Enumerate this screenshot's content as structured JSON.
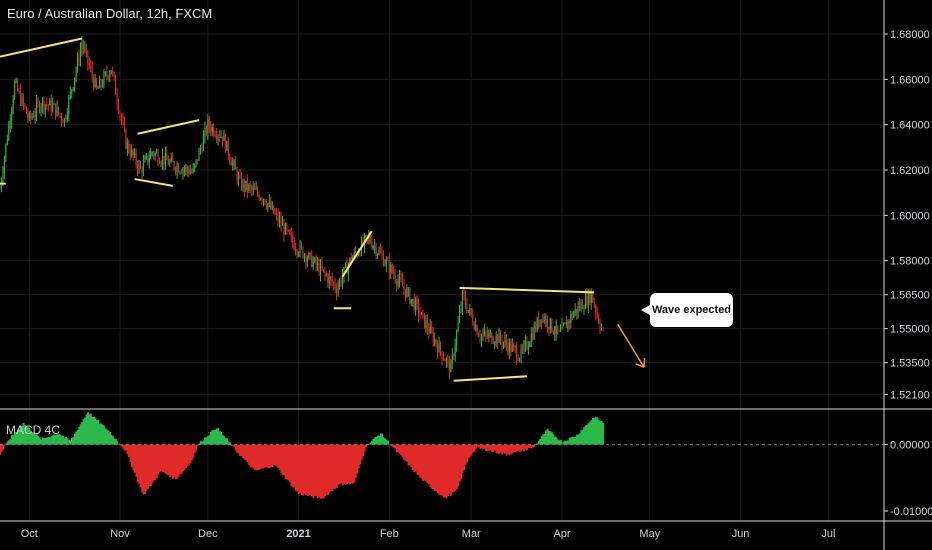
{
  "title": "Euro / Australian Dollar, 12h, FXCM",
  "macd_label": "MACD 4C",
  "annotation": "Wave expected",
  "colors": {
    "background": "#000000",
    "up": "#2db84a",
    "down": "#e02a2a",
    "trendline": "#f5e37a",
    "arrow": "#f39a3c",
    "divider": "#d8d8d8",
    "grid": "#1b1b1b"
  },
  "chart_data": [
    {
      "type": "candlestick",
      "title": "Euro / Australian Dollar, 12h, FXCM",
      "ylim": [
        1.515,
        1.695
      ],
      "yticks": [
        "1.68000",
        "1.66000",
        "1.64000",
        "1.62000",
        "1.60000",
        "1.58000",
        "1.56500",
        "1.55000",
        "1.53500",
        "1.52100"
      ],
      "xticks": [
        "Oct",
        "Nov",
        "Dec",
        "2021",
        "Feb",
        "Mar",
        "Apr",
        "May",
        "Jun",
        "Jul"
      ],
      "x_range": [
        "2020-09-21",
        "2021-07-20"
      ],
      "series": {
        "price_path": [
          {
            "date": "2020-09-21",
            "value": 1.612
          },
          {
            "date": "2020-09-26",
            "value": 1.658
          },
          {
            "date": "2020-10-01",
            "value": 1.642
          },
          {
            "date": "2020-10-05",
            "value": 1.65
          },
          {
            "date": "2020-10-09",
            "value": 1.648
          },
          {
            "date": "2020-10-13",
            "value": 1.642
          },
          {
            "date": "2020-10-19",
            "value": 1.676
          },
          {
            "date": "2020-10-24",
            "value": 1.655
          },
          {
            "date": "2020-10-29",
            "value": 1.665
          },
          {
            "date": "2020-11-03",
            "value": 1.632
          },
          {
            "date": "2020-11-08",
            "value": 1.62
          },
          {
            "date": "2020-11-12",
            "value": 1.628
          },
          {
            "date": "2020-11-18",
            "value": 1.623
          },
          {
            "date": "2020-11-26",
            "value": 1.619
          },
          {
            "date": "2020-12-01",
            "value": 1.64
          },
          {
            "date": "2020-12-06",
            "value": 1.635
          },
          {
            "date": "2020-12-12",
            "value": 1.614
          },
          {
            "date": "2020-12-20",
            "value": 1.608
          },
          {
            "date": "2020-12-30",
            "value": 1.588
          },
          {
            "date": "2021-01-07",
            "value": 1.578
          },
          {
            "date": "2021-01-14",
            "value": 1.568
          },
          {
            "date": "2021-01-19",
            "value": 1.581
          },
          {
            "date": "2021-01-25",
            "value": 1.59
          },
          {
            "date": "2021-02-01",
            "value": 1.577
          },
          {
            "date": "2021-02-10",
            "value": 1.56
          },
          {
            "date": "2021-02-22",
            "value": 1.532
          },
          {
            "date": "2021-02-26",
            "value": 1.564
          },
          {
            "date": "2021-03-04",
            "value": 1.547
          },
          {
            "date": "2021-03-10",
            "value": 1.546
          },
          {
            "date": "2021-03-18",
            "value": 1.538
          },
          {
            "date": "2021-03-25",
            "value": 1.556
          },
          {
            "date": "2021-03-31",
            "value": 1.547
          },
          {
            "date": "2021-04-05",
            "value": 1.557
          },
          {
            "date": "2021-04-11",
            "value": 1.565
          },
          {
            "date": "2021-04-15",
            "value": 1.548
          }
        ]
      },
      "trendlines": [
        {
          "from": {
            "date": "2020-09-21",
            "value": 1.67
          },
          "to": {
            "date": "2020-10-19",
            "value": 1.678
          }
        },
        {
          "from": {
            "date": "2020-09-21",
            "value": 1.614
          },
          "to": {
            "date": "2020-09-23",
            "value": 1.614
          }
        },
        {
          "from": {
            "date": "2020-11-07",
            "value": 1.636
          },
          "to": {
            "date": "2020-11-28",
            "value": 1.642
          }
        },
        {
          "from": {
            "date": "2020-11-06",
            "value": 1.616
          },
          "to": {
            "date": "2020-11-19",
            "value": 1.613
          }
        },
        {
          "from": {
            "date": "2021-01-16",
            "value": 1.573
          },
          "to": {
            "date": "2021-01-26",
            "value": 1.593
          }
        },
        {
          "from": {
            "date": "2021-01-13",
            "value": 1.559
          },
          "to": {
            "date": "2021-01-19",
            "value": 1.559
          }
        },
        {
          "from": {
            "date": "2021-02-25",
            "value": 1.568
          },
          "to": {
            "date": "2021-04-12",
            "value": 1.566
          }
        },
        {
          "from": {
            "date": "2021-02-23",
            "value": 1.527
          },
          "to": {
            "date": "2021-03-20",
            "value": 1.529
          }
        }
      ],
      "projection_arrow": {
        "from": {
          "date": "2021-04-20",
          "value": 1.552
        },
        "to": {
          "date": "2021-04-29",
          "value": 1.533
        }
      }
    },
    {
      "type": "histogram",
      "title": "MACD 4C",
      "ylim": [
        -0.0115,
        0.0052
      ],
      "yticks": [
        "0.00000",
        "-0.01000"
      ],
      "series": {
        "macd_path": [
          {
            "date": "2020-09-21",
            "value": -0.0015
          },
          {
            "date": "2020-09-24",
            "value": 0.0007
          },
          {
            "date": "2020-09-29",
            "value": 0.0032
          },
          {
            "date": "2020-10-05",
            "value": 0.0008
          },
          {
            "date": "2020-10-11",
            "value": 0.0017
          },
          {
            "date": "2020-10-15",
            "value": 0.0005
          },
          {
            "date": "2020-10-21",
            "value": 0.0049
          },
          {
            "date": "2020-10-28",
            "value": 0.0021
          },
          {
            "date": "2020-11-03",
            "value": -0.001
          },
          {
            "date": "2020-11-09",
            "value": -0.0076
          },
          {
            "date": "2020-11-15",
            "value": -0.004
          },
          {
            "date": "2020-11-20",
            "value": -0.0052
          },
          {
            "date": "2020-11-25",
            "value": -0.0028
          },
          {
            "date": "2020-11-28",
            "value": 0.0002
          },
          {
            "date": "2020-12-04",
            "value": 0.0026
          },
          {
            "date": "2020-12-10",
            "value": -0.0006
          },
          {
            "date": "2020-12-17",
            "value": -0.004
          },
          {
            "date": "2020-12-24",
            "value": -0.0031
          },
          {
            "date": "2021-01-01",
            "value": -0.0074
          },
          {
            "date": "2021-01-09",
            "value": -0.0081
          },
          {
            "date": "2021-01-15",
            "value": -0.006
          },
          {
            "date": "2021-01-20",
            "value": -0.0058
          },
          {
            "date": "2021-01-24",
            "value": -0.0002
          },
          {
            "date": "2021-01-29",
            "value": 0.0017
          },
          {
            "date": "2021-02-03",
            "value": -0.0008
          },
          {
            "date": "2021-02-12",
            "value": -0.0052
          },
          {
            "date": "2021-02-20",
            "value": -0.0081
          },
          {
            "date": "2021-02-24",
            "value": -0.0069
          },
          {
            "date": "2021-02-28",
            "value": -0.002
          },
          {
            "date": "2021-03-03",
            "value": -0.0005
          },
          {
            "date": "2021-03-13",
            "value": -0.0015
          },
          {
            "date": "2021-03-22",
            "value": -0.0005
          },
          {
            "date": "2021-03-27",
            "value": 0.0022
          },
          {
            "date": "2021-04-01",
            "value": 0.0004
          },
          {
            "date": "2021-04-06",
            "value": 0.0014
          },
          {
            "date": "2021-04-12",
            "value": 0.0042
          },
          {
            "date": "2021-04-15",
            "value": 0.0033
          }
        ]
      }
    }
  ]
}
